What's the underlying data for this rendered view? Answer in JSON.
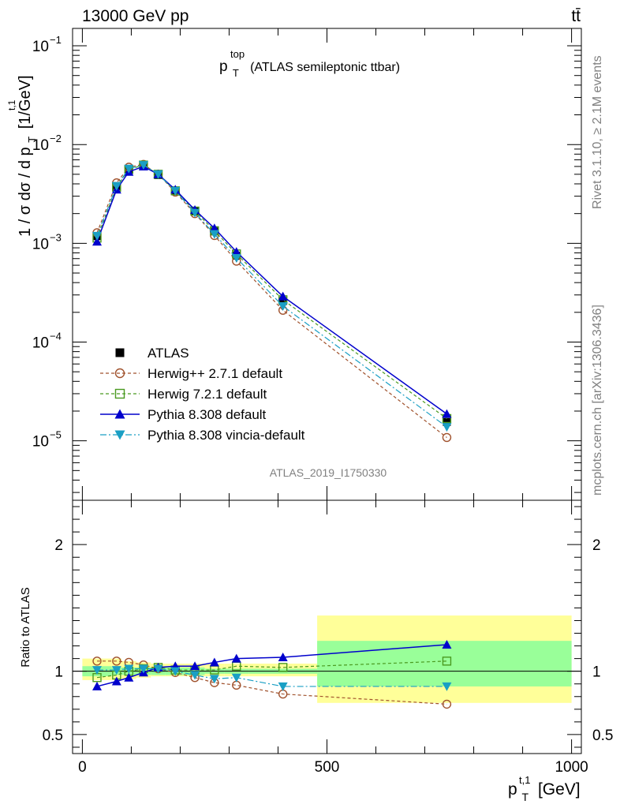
{
  "header": {
    "left": "13000 GeV pp",
    "right": "tt̄"
  },
  "side": {
    "rivet": "Rivet 3.1.10, ≥ 2.1M events",
    "mcplots": "mcplots.cern.ch [arXiv:1306.3436]"
  },
  "chart_data": {
    "type": "line",
    "title_main": "p",
    "title_sup": "top",
    "title_sub": "T",
    "title_rest": "(ATLAS semileptonic ttbar)",
    "analysis_id": "ATLAS_2019_I1750330",
    "ylabel_main": {
      "a": "1 / σ dσ / d p",
      "sup": "t,1",
      "sub": "T",
      "b": "[1/GeV]"
    },
    "ylabel_ratio": "Ratio to ATLAS",
    "xlabel": {
      "p": "p",
      "sup": "t,1",
      "sub": "T",
      "unit": "[GeV]"
    },
    "xlim": [
      -20,
      1020
    ],
    "ylim_main_log": [
      2.5e-06,
      0.15
    ],
    "ylim_ratio": [
      0.35,
      2.35
    ],
    "x_ticks": [
      {
        "value": 0,
        "label": "0"
      },
      {
        "value": 500,
        "label": "500"
      },
      {
        "value": 1000,
        "label": "1000"
      }
    ],
    "y_ticks_main": [
      {
        "value": 0.1,
        "label": "10",
        "exp": "−1"
      },
      {
        "value": 0.01,
        "label": "10",
        "exp": "−2"
      },
      {
        "value": 0.001,
        "label": "10",
        "exp": "−3"
      },
      {
        "value": 0.0001,
        "label": "10",
        "exp": "−4"
      },
      {
        "value": 1e-05,
        "label": "10",
        "exp": "−5"
      }
    ],
    "y_ticks_ratio": [
      {
        "value": 0.5,
        "label": "0.5"
      },
      {
        "value": 1,
        "label": "1"
      },
      {
        "value": 2,
        "label": "2"
      }
    ],
    "x": [
      30,
      70,
      95,
      125,
      155,
      190,
      230,
      270,
      315,
      410,
      745
    ],
    "bin_edges": [
      0,
      60,
      80,
      110,
      140,
      170,
      210,
      250,
      290,
      340,
      480,
      1000
    ],
    "ratio_bands": {
      "stat": [
        [
          0.96,
          1.04
        ],
        [
          0.97,
          1.03
        ],
        [
          0.97,
          1.03
        ],
        [
          0.97,
          1.03
        ],
        [
          0.97,
          1.03
        ],
        [
          0.97,
          1.03
        ],
        [
          0.97,
          1.03
        ],
        [
          0.98,
          1.02
        ],
        [
          0.98,
          1.02
        ],
        [
          0.98,
          1.02
        ],
        [
          0.88,
          1.24
        ]
      ],
      "total": [
        [
          0.93,
          1.1
        ],
        [
          0.93,
          1.1
        ],
        [
          0.94,
          1.08
        ],
        [
          0.95,
          1.07
        ],
        [
          0.96,
          1.06
        ],
        [
          0.96,
          1.06
        ],
        [
          0.96,
          1.06
        ],
        [
          0.96,
          1.06
        ],
        [
          0.96,
          1.06
        ],
        [
          0.96,
          1.06
        ],
        [
          0.75,
          1.44
        ]
      ]
    },
    "series": [
      {
        "name": "ATLAS",
        "color": "#000000",
        "marker": "square-filled",
        "line": "none",
        "values": [
          0.00118,
          0.0038,
          0.0056,
          0.0061,
          0.0049,
          0.0034,
          0.0021,
          0.00132,
          0.00075,
          0.00026,
          1.55e-05
        ],
        "ratio": [
          1,
          1,
          1,
          1,
          1,
          1,
          1,
          1,
          1,
          1,
          1
        ]
      },
      {
        "name": "Herwig++ 2.7.1 default",
        "color": "#a0522d",
        "marker": "circle-open",
        "line": "dashed",
        "values": [
          0.00128,
          0.0041,
          0.0059,
          0.0063,
          0.005,
          0.0033,
          0.002,
          0.0012,
          0.00066,
          0.00021,
          1.08e-05
        ],
        "ratio": [
          1.08,
          1.08,
          1.07,
          1.05,
          1.02,
          0.99,
          0.95,
          0.91,
          0.89,
          0.82,
          0.74
        ]
      },
      {
        "name": "Herwig 7.2.1 default",
        "color": "#4a9a20",
        "marker": "square-open",
        "line": "dashed",
        "values": [
          0.00113,
          0.0037,
          0.0056,
          0.0062,
          0.005,
          0.0034,
          0.00212,
          0.00134,
          0.00078,
          0.000268,
          1.68e-05
        ],
        "ratio": [
          0.95,
          0.97,
          1.0,
          1.02,
          1.03,
          1.01,
          1.01,
          1.01,
          1.04,
          1.03,
          1.08
        ]
      },
      {
        "name": "Pythia 8.308 default",
        "color": "#0000cc",
        "marker": "triangle-up",
        "line": "solid",
        "values": [
          0.00104,
          0.0035,
          0.0053,
          0.006,
          0.005,
          0.0035,
          0.00218,
          0.00142,
          0.00082,
          0.00029,
          1.87e-05
        ],
        "ratio": [
          0.88,
          0.92,
          0.95,
          0.99,
          1.03,
          1.04,
          1.04,
          1.07,
          1.1,
          1.11,
          1.21
        ]
      },
      {
        "name": "Pythia 8.308 vincia-default",
        "color": "#1a9fc4",
        "marker": "triangle-down",
        "line": "dashdot",
        "values": [
          0.00119,
          0.0038,
          0.0057,
          0.0062,
          0.005,
          0.0034,
          0.00204,
          0.00124,
          0.00071,
          0.000231,
          1.38e-05
        ],
        "ratio": [
          1.01,
          1.01,
          1.02,
          1.02,
          1.02,
          1.0,
          0.97,
          0.94,
          0.95,
          0.88,
          0.88
        ]
      }
    ],
    "legend_position": "lower-left"
  }
}
